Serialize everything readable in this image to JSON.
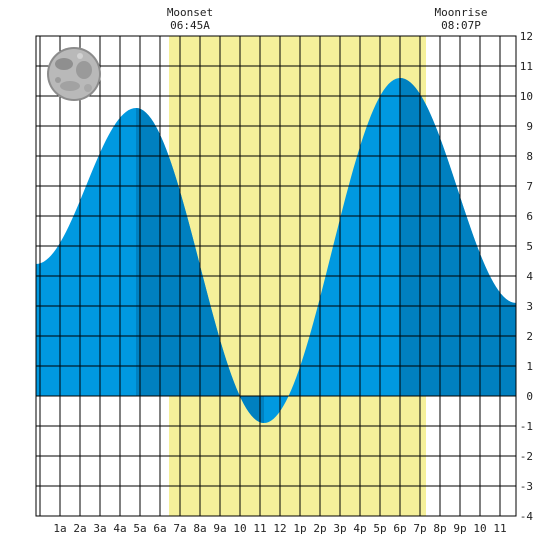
{
  "moonset": {
    "label": "Moonset",
    "time": "06:45A"
  },
  "moonrise": {
    "label": "Moonrise",
    "time": "08:07P"
  },
  "moon_phase_icon": "full-moon-icon",
  "colors": {
    "daylight": "#f5f09a",
    "tide_light": "#0099e0",
    "tide_dark": "#0080c0",
    "grid": "#000000",
    "background": "#ffffff"
  },
  "chart_data": {
    "type": "area",
    "x_unit": "hour of day",
    "xlim": [
      -0.2,
      23.8
    ],
    "ylim": [
      -4,
      12
    ],
    "grid": true,
    "x_tick_labels": [
      "1a",
      "2a",
      "3a",
      "4a",
      "5a",
      "6a",
      "7a",
      "8a",
      "9a",
      "10",
      "11",
      "12",
      "1p",
      "2p",
      "3p",
      "4p",
      "5p",
      "6p",
      "7p",
      "8p",
      "9p",
      "10",
      "11"
    ],
    "x_tick_values": [
      1,
      2,
      3,
      4,
      5,
      6,
      7,
      8,
      9,
      10,
      11,
      12,
      13,
      14,
      15,
      16,
      17,
      18,
      19,
      20,
      21,
      22,
      23
    ],
    "y_tick_labels": [
      "-4",
      "-3",
      "-2",
      "-1",
      "0",
      "1",
      "2",
      "3",
      "4",
      "5",
      "6",
      "7",
      "8",
      "9",
      "10",
      "11",
      "12"
    ],
    "y_tick_values": [
      -4,
      -3,
      -2,
      -1,
      0,
      1,
      2,
      3,
      4,
      5,
      6,
      7,
      8,
      9,
      10,
      11,
      12
    ],
    "daylight_band": [
      6.45,
      19.3
    ],
    "tide_extremes": [
      {
        "hour": 4.8,
        "height": 9.6,
        "kind": "high"
      },
      {
        "hour": 11.2,
        "height": -0.9,
        "kind": "low"
      },
      {
        "hour": 18.0,
        "height": 10.6,
        "kind": "high"
      }
    ],
    "start_height": 4.4,
    "end_height": 3.1,
    "dark_bands": [
      [
        4.8,
        11.2
      ],
      [
        18.0,
        23.8
      ]
    ]
  }
}
